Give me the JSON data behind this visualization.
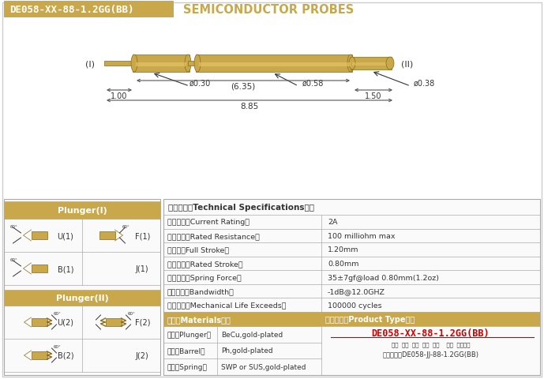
{
  "bg_color": "#ffffff",
  "gold_color": "#C9A84C",
  "gold_dark": "#8B6914",
  "gold_light": "#E8C86A",
  "border_color": "#aaaaaa",
  "text_dark": "#333333",
  "text_red": "#CC0000",
  "header_text": "DE058-XX-88-1.2GG(BB)",
  "title_text": "SEMICONDUCTOR PROBES",
  "probe_dims": {
    "d030": "ø0.30",
    "d058": "ø0.58",
    "d038": "ø0.38",
    "dim635": "(6.35)",
    "dim100": "1.00",
    "dim150": "1.50",
    "dim885": "8.85"
  },
  "label_I": "(I)",
  "label_II": "(II)",
  "specs_title": "技术要求（Technical Specifications）：",
  "specs": [
    [
      "额定电流（Current Rating）",
      "2A"
    ],
    [
      "额定电阵（Rated Resistance）",
      "100 milliohm max"
    ],
    [
      "满行程（Full Stroke）",
      "1.20mm"
    ],
    [
      "额定行程（Rated Stroke）",
      "0.80mm"
    ],
    [
      "额定弹力（Spring Force）",
      "35±7gf@load 0.80mm(1.2oz)"
    ],
    [
      "频率带宽（Bandwidth）",
      "-1dB@12.0GHZ"
    ],
    [
      "测试寿命（Mechanical Life Exceeds）",
      "100000 cycles"
    ]
  ],
  "plunger1_title": "Plunger(I)",
  "plunger2_title": "Plunger(II)",
  "plunger1_types": [
    [
      "U(1)",
      "F(1)"
    ],
    [
      "B(1)",
      "J(1)"
    ]
  ],
  "plunger2_types": [
    [
      "U(2)",
      "F(2)"
    ],
    [
      "B(2)",
      "J(2)"
    ]
  ],
  "materials_title": "材质（Materials）：",
  "materials": [
    [
      "针头（Plunger）",
      "BeCu,gold-plated"
    ],
    [
      "针管（Barrel）",
      "Ph,gold-plated"
    ],
    [
      "弹簧（Spring）",
      "SWP or SUS,gold-plated"
    ]
  ],
  "product_title": "成品型号（Product Type）：",
  "product_code": "DE058-XX-88-1.2GG(BB)",
  "product_labels": "系列  规格  头型  行程  弹力    門金  针头材质",
  "product_order": "订购举例：DE058-JJ-88-1.2GG(BB)"
}
